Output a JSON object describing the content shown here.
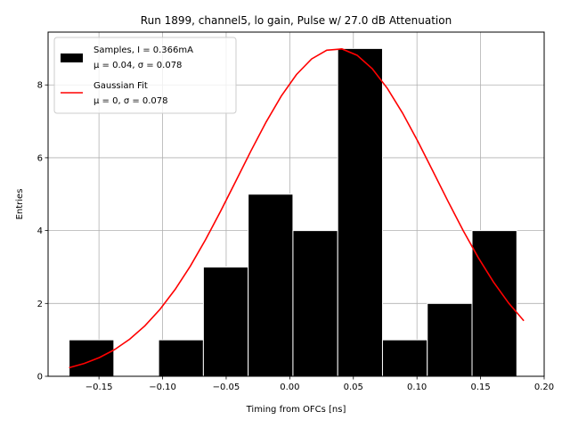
{
  "chart_data": {
    "type": "bar",
    "title": "Run 1899, channel5, lo gain, Pulse w/ 27.0 dB Attenuation",
    "xlabel": "Timing from OFCs [ns]",
    "ylabel": "Entries",
    "xlim": [
      -0.19,
      0.2
    ],
    "ylim": [
      0,
      9.45
    ],
    "grid": true,
    "legend_position": "top-left",
    "x_ticks": [
      -0.15,
      -0.1,
      -0.05,
      0.0,
      0.05,
      0.1,
      0.15,
      0.2
    ],
    "x_tick_labels": [
      "−0.15",
      "−0.10",
      "−0.05",
      "0.00",
      "0.05",
      "0.10",
      "0.15",
      "0.20"
    ],
    "y_ticks": [
      0,
      2,
      4,
      6,
      8
    ],
    "y_tick_labels": [
      "0",
      "2",
      "4",
      "6",
      "8"
    ],
    "histogram": {
      "name": "Samples, I = 0.366mA",
      "stats_label": "μ = 0.04, σ = 0.078",
      "color": "#000000",
      "edge_color": "#ffffff",
      "bin_edges": [
        -0.1735,
        -0.1383,
        -0.1031,
        -0.0679,
        -0.0327,
        0.0025,
        0.0377,
        0.0729,
        0.1081,
        0.1433,
        0.1785
      ],
      "values": [
        1,
        0,
        1,
        3,
        5,
        4,
        9,
        1,
        2,
        4
      ]
    },
    "fit": {
      "name": "Gaussian Fit",
      "stats_label": "μ = 0, σ = 0.078",
      "color": "#ff0000",
      "amplitude": 9.0,
      "mean": 0.037,
      "sigma": 0.078,
      "x_range": [
        -0.1735,
        0.184
      ]
    }
  }
}
